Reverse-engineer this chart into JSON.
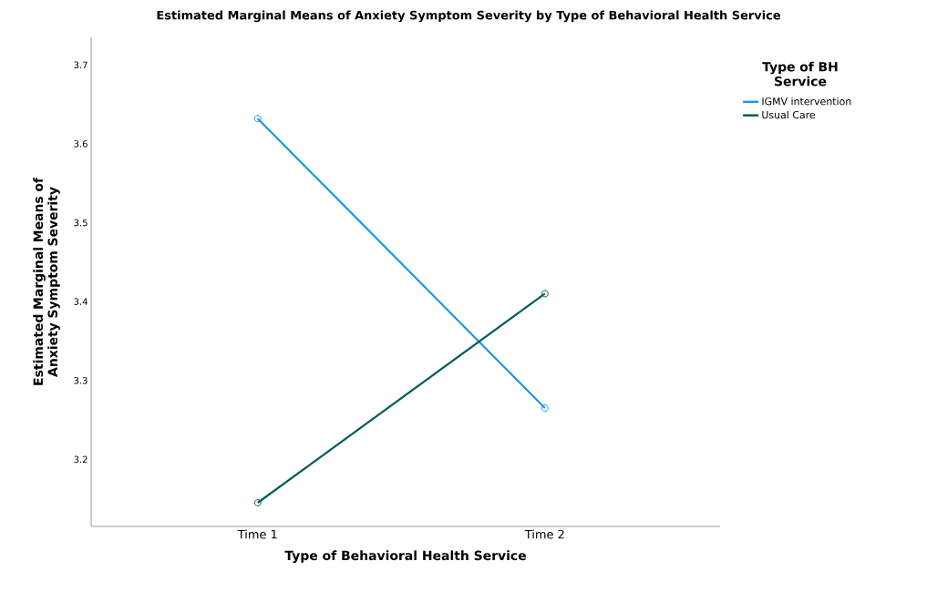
{
  "chart_data": {
    "type": "line",
    "title": "Estimated Marginal Means of Anxiety Symptom Severity by Type of Behavioral Health Service",
    "xlabel": "Type of Behavioral Health Service",
    "ylabel": "Estimated Marginal Means of Anxiety Symptom Severity",
    "legend_title": "Type of BH Service",
    "categories": [
      "Time 1",
      "Time 2"
    ],
    "series": [
      {
        "name": "IGMV intervention",
        "color": "#1f94e6",
        "values": [
          3.632,
          3.265
        ]
      },
      {
        "name": "Usual Care",
        "color": "#005c5c",
        "values": [
          3.145,
          3.41
        ]
      }
    ],
    "ylim": [
      3.115,
      3.735
    ],
    "yticks": [
      3.2,
      3.3,
      3.4,
      3.5,
      3.6,
      3.7
    ],
    "grid": false,
    "legend": "top right",
    "marker": "circle",
    "line_style": "solid"
  }
}
